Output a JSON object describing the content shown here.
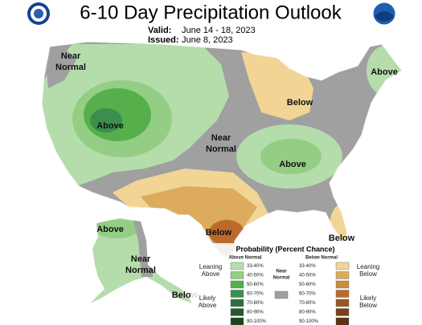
{
  "title": "6-10 Day Precipitation Outlook",
  "valid": {
    "label": "Valid:",
    "value": "June 14 - 18, 2023"
  },
  "issued": {
    "label": "Issued:",
    "value": "June 8, 2023"
  },
  "map_labels": [
    {
      "lines": [
        "Near",
        "Normal"
      ]
    },
    {
      "lines": [
        "Above"
      ]
    },
    {
      "lines": [
        "Above"
      ]
    },
    {
      "lines": [
        "Below"
      ]
    },
    {
      "lines": [
        "Near",
        "Normal"
      ]
    },
    {
      "lines": [
        "Above"
      ]
    },
    {
      "lines": [
        "Below"
      ]
    },
    {
      "lines": [
        "Below"
      ]
    },
    {
      "lines": [
        "Above"
      ]
    },
    {
      "lines": [
        "Near",
        "Normal"
      ]
    },
    {
      "lines": [
        "Below"
      ]
    }
  ],
  "legend": {
    "title": "Probability (Percent Chance)",
    "above_header": "Above Normal",
    "below_header": "Below Normal",
    "near": {
      "lines": [
        "Near",
        "Normal"
      ],
      "color": "#a0a0a0"
    },
    "above_classes": [
      "33-40%",
      "40-50%",
      "50-60%",
      "60-70%",
      "70-80%",
      "80-90%",
      "90-100%"
    ],
    "above_colors": [
      "#b5dcab",
      "#94cd84",
      "#55b04c",
      "#3b8f4d",
      "#2d7040",
      "#255a2c",
      "#1c421c"
    ],
    "below_classes": [
      "33-40%",
      "40-50%",
      "50-60%",
      "60-70%",
      "70-80%",
      "80-90%",
      "90-100%"
    ],
    "below_colors": [
      "#f2d595",
      "#dcab5d",
      "#cc8d3e",
      "#bb6a2d",
      "#9a5522",
      "#7a401b",
      "#5c3016"
    ],
    "leaning_above": {
      "lines": [
        "Leaning",
        "Above"
      ]
    },
    "likely_above": {
      "lines": [
        "Likely",
        "Above"
      ]
    },
    "leaning_below": {
      "lines": [
        "Leaning",
        "Below"
      ]
    },
    "likely_below": {
      "lines": [
        "Likely",
        "Below"
      ]
    }
  }
}
